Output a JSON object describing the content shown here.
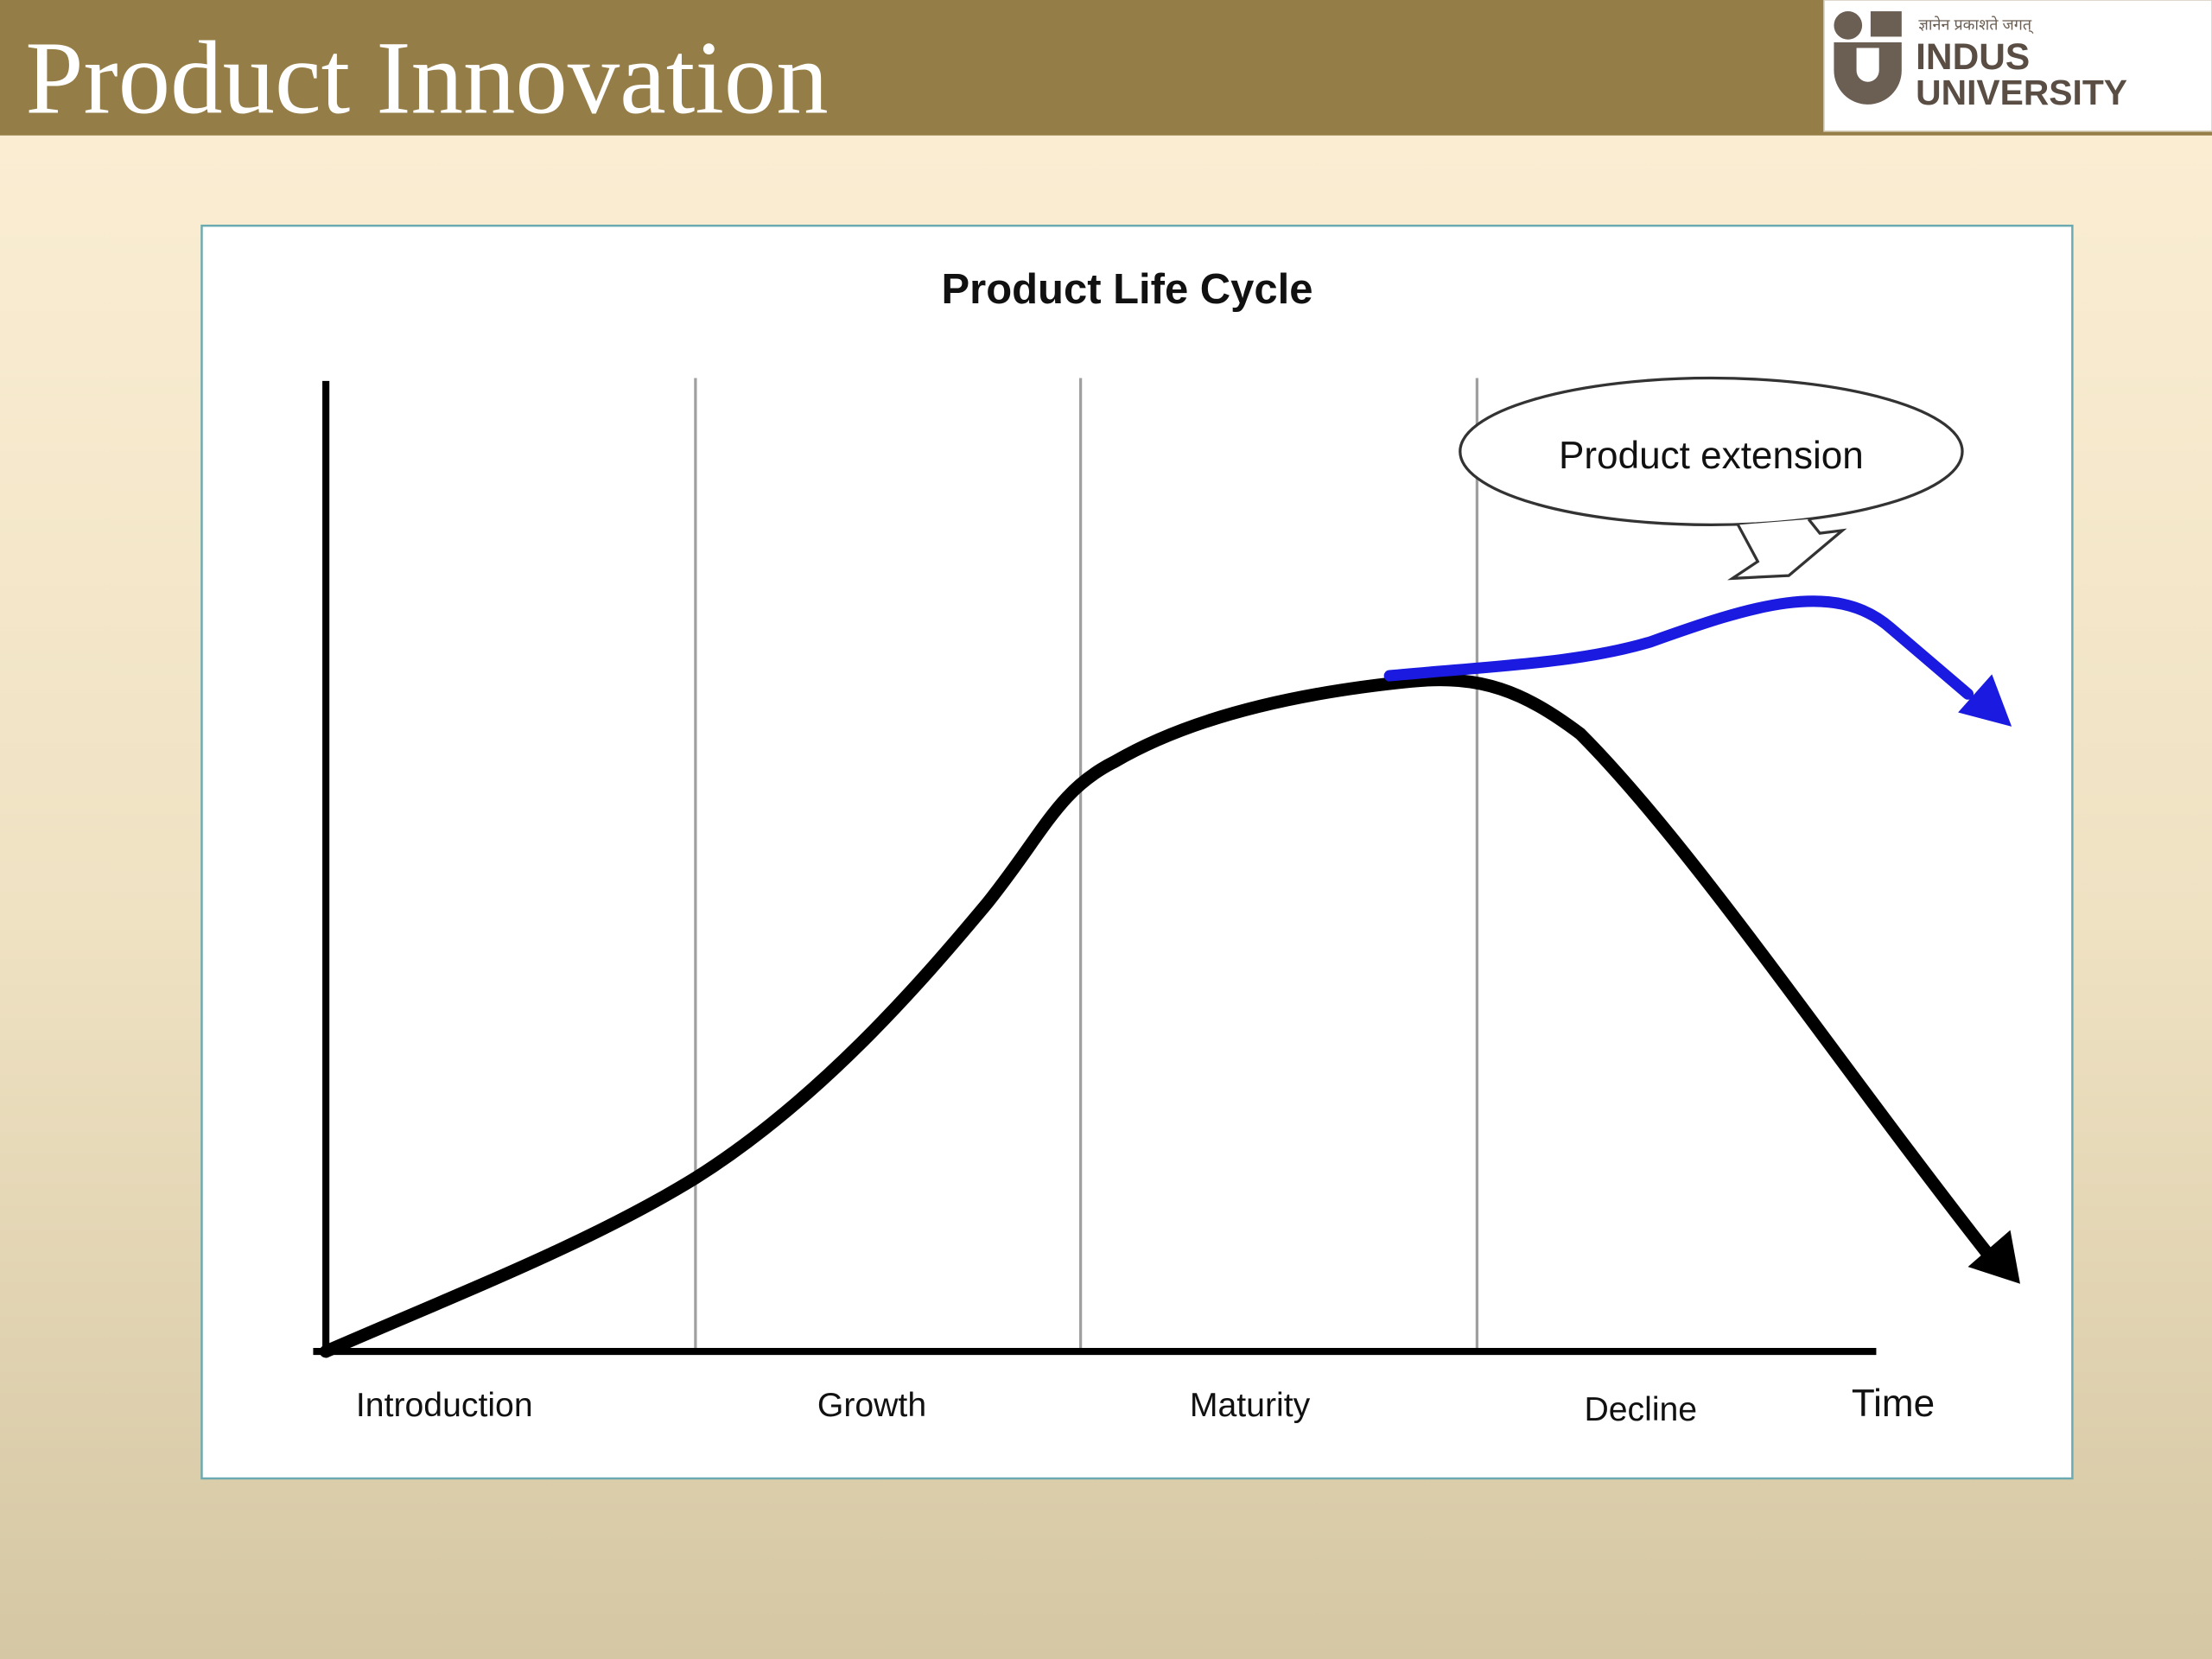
{
  "header": {
    "title": "Product Innovation",
    "logo": {
      "motto": "ज्ञानेन प्रकाशते जगत्",
      "name_line1": "INDUS",
      "name_line2": "UNIVERSITY"
    }
  },
  "diagram": {
    "title": "Product Life Cycle",
    "callout": "Product extension",
    "stages": [
      "Introduction",
      "Growth",
      "Maturity",
      "Decline"
    ],
    "x_axis_label": "Time"
  }
}
